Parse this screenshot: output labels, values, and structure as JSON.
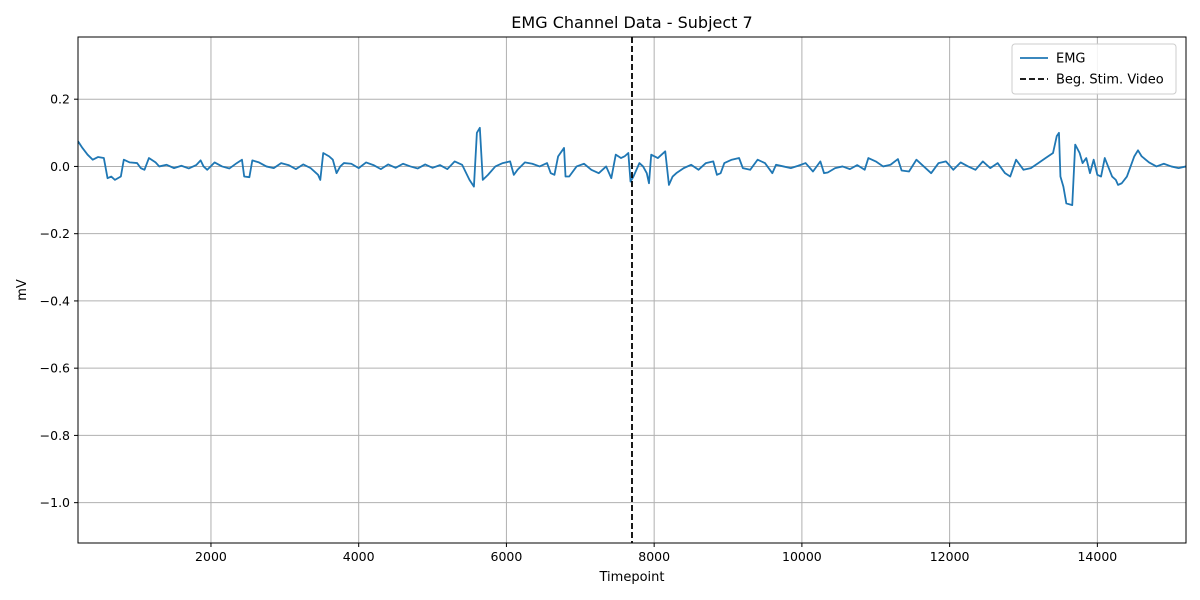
{
  "chart_data": {
    "type": "line",
    "title": "EMG Channel Data - Subject 7",
    "xlabel": "Timepoint",
    "ylabel": "mV",
    "xlim": [
      200,
      15200
    ],
    "ylim": [
      -1.12,
      0.385
    ],
    "xticks": [
      2000,
      4000,
      6000,
      8000,
      10000,
      12000,
      14000
    ],
    "xtick_labels": [
      "2000",
      "4000",
      "6000",
      "8000",
      "10000",
      "12000",
      "14000"
    ],
    "yticks": [
      0.2,
      0.0,
      -0.2,
      -0.4,
      -0.6,
      -0.8,
      -1.0
    ],
    "ytick_labels": [
      "0.2",
      "0.0",
      "−0.2",
      "−0.4",
      "−0.6",
      "−0.8",
      "−1.0"
    ],
    "grid": true,
    "legend_position": "top-right",
    "series": [
      {
        "name": "EMG",
        "color": "#1f77b4",
        "style": "solid",
        "points": [
          [
            200,
            0.075
          ],
          [
            260,
            0.055
          ],
          [
            330,
            0.035
          ],
          [
            400,
            0.02
          ],
          [
            470,
            0.028
          ],
          [
            550,
            0.025
          ],
          [
            600,
            -0.035
          ],
          [
            650,
            -0.03
          ],
          [
            700,
            -0.04
          ],
          [
            780,
            -0.03
          ],
          [
            820,
            0.02
          ],
          [
            900,
            0.012
          ],
          [
            1000,
            0.01
          ],
          [
            1050,
            -0.005
          ],
          [
            1100,
            -0.01
          ],
          [
            1160,
            0.025
          ],
          [
            1250,
            0.012
          ],
          [
            1300,
            0.0
          ],
          [
            1400,
            0.005
          ],
          [
            1500,
            -0.005
          ],
          [
            1600,
            0.002
          ],
          [
            1700,
            -0.006
          ],
          [
            1800,
            0.004
          ],
          [
            1860,
            0.018
          ],
          [
            1900,
            0.0
          ],
          [
            1950,
            -0.01
          ],
          [
            2050,
            0.012
          ],
          [
            2150,
            0.0
          ],
          [
            2250,
            -0.006
          ],
          [
            2350,
            0.01
          ],
          [
            2420,
            0.02
          ],
          [
            2450,
            -0.03
          ],
          [
            2520,
            -0.032
          ],
          [
            2560,
            0.018
          ],
          [
            2650,
            0.012
          ],
          [
            2750,
            0.0
          ],
          [
            2850,
            -0.005
          ],
          [
            2950,
            0.01
          ],
          [
            3050,
            0.004
          ],
          [
            3150,
            -0.008
          ],
          [
            3250,
            0.006
          ],
          [
            3350,
            -0.005
          ],
          [
            3450,
            -0.025
          ],
          [
            3480,
            -0.04
          ],
          [
            3520,
            0.04
          ],
          [
            3600,
            0.03
          ],
          [
            3650,
            0.02
          ],
          [
            3700,
            -0.02
          ],
          [
            3750,
            0.0
          ],
          [
            3800,
            0.01
          ],
          [
            3900,
            0.008
          ],
          [
            4000,
            -0.005
          ],
          [
            4100,
            0.012
          ],
          [
            4200,
            0.004
          ],
          [
            4300,
            -0.008
          ],
          [
            4400,
            0.006
          ],
          [
            4500,
            -0.004
          ],
          [
            4600,
            0.008
          ],
          [
            4700,
            0.0
          ],
          [
            4800,
            -0.006
          ],
          [
            4900,
            0.006
          ],
          [
            5000,
            -0.004
          ],
          [
            5100,
            0.004
          ],
          [
            5200,
            -0.008
          ],
          [
            5300,
            0.015
          ],
          [
            5400,
            0.005
          ],
          [
            5500,
            -0.04
          ],
          [
            5560,
            -0.06
          ],
          [
            5600,
            0.1
          ],
          [
            5640,
            0.115
          ],
          [
            5680,
            -0.04
          ],
          [
            5750,
            -0.025
          ],
          [
            5850,
            0.0
          ],
          [
            5950,
            0.01
          ],
          [
            6050,
            0.015
          ],
          [
            6100,
            -0.025
          ],
          [
            6150,
            -0.01
          ],
          [
            6250,
            0.012
          ],
          [
            6350,
            0.008
          ],
          [
            6450,
            0.0
          ],
          [
            6550,
            0.01
          ],
          [
            6600,
            -0.02
          ],
          [
            6650,
            -0.025
          ],
          [
            6700,
            0.03
          ],
          [
            6780,
            0.055
          ],
          [
            6800,
            -0.03
          ],
          [
            6850,
            -0.03
          ],
          [
            6950,
            0.0
          ],
          [
            7050,
            0.008
          ],
          [
            7150,
            -0.01
          ],
          [
            7250,
            -0.02
          ],
          [
            7350,
            0.0
          ],
          [
            7420,
            -0.035
          ],
          [
            7480,
            0.035
          ],
          [
            7550,
            0.025
          ],
          [
            7600,
            0.03
          ],
          [
            7650,
            0.04
          ],
          [
            7680,
            -0.045
          ],
          [
            7720,
            -0.03
          ],
          [
            7800,
            0.01
          ],
          [
            7850,
            0.0
          ],
          [
            7900,
            -0.02
          ],
          [
            7930,
            -0.05
          ],
          [
            7960,
            0.035
          ],
          [
            8050,
            0.025
          ],
          [
            8150,
            0.045
          ],
          [
            8200,
            -0.055
          ],
          [
            8250,
            -0.03
          ],
          [
            8300,
            -0.02
          ],
          [
            8400,
            -0.005
          ],
          [
            8500,
            0.005
          ],
          [
            8600,
            -0.01
          ],
          [
            8700,
            0.01
          ],
          [
            8800,
            0.015
          ],
          [
            8850,
            -0.025
          ],
          [
            8900,
            -0.02
          ],
          [
            8950,
            0.01
          ],
          [
            9050,
            0.02
          ],
          [
            9150,
            0.025
          ],
          [
            9200,
            -0.005
          ],
          [
            9300,
            -0.01
          ],
          [
            9400,
            0.02
          ],
          [
            9500,
            0.01
          ],
          [
            9600,
            -0.02
          ],
          [
            9650,
            0.005
          ],
          [
            9750,
            0.0
          ],
          [
            9850,
            -0.005
          ],
          [
            9950,
            0.002
          ],
          [
            10050,
            0.01
          ],
          [
            10150,
            -0.015
          ],
          [
            10250,
            0.015
          ],
          [
            10300,
            -0.02
          ],
          [
            10350,
            -0.018
          ],
          [
            10450,
            -0.005
          ],
          [
            10550,
            0.0
          ],
          [
            10650,
            -0.008
          ],
          [
            10750,
            0.004
          ],
          [
            10850,
            -0.01
          ],
          [
            10900,
            0.025
          ],
          [
            11000,
            0.015
          ],
          [
            11100,
            0.0
          ],
          [
            11200,
            0.005
          ],
          [
            11300,
            0.022
          ],
          [
            11350,
            -0.012
          ],
          [
            11450,
            -0.015
          ],
          [
            11550,
            0.02
          ],
          [
            11650,
            0.0
          ],
          [
            11750,
            -0.02
          ],
          [
            11850,
            0.01
          ],
          [
            11950,
            0.015
          ],
          [
            12050,
            -0.01
          ],
          [
            12150,
            0.012
          ],
          [
            12250,
            0.0
          ],
          [
            12350,
            -0.01
          ],
          [
            12450,
            0.015
          ],
          [
            12550,
            -0.005
          ],
          [
            12650,
            0.01
          ],
          [
            12750,
            -0.02
          ],
          [
            12820,
            -0.03
          ],
          [
            12900,
            0.02
          ],
          [
            13000,
            -0.01
          ],
          [
            13100,
            -0.005
          ],
          [
            13200,
            0.01
          ],
          [
            13300,
            0.025
          ],
          [
            13400,
            0.04
          ],
          [
            13450,
            0.09
          ],
          [
            13480,
            0.1
          ],
          [
            13500,
            -0.03
          ],
          [
            13540,
            -0.06
          ],
          [
            13580,
            -0.11
          ],
          [
            13660,
            -0.115
          ],
          [
            13700,
            0.065
          ],
          [
            13760,
            0.04
          ],
          [
            13800,
            0.01
          ],
          [
            13850,
            0.025
          ],
          [
            13900,
            -0.02
          ],
          [
            13950,
            0.02
          ],
          [
            14000,
            -0.025
          ],
          [
            14050,
            -0.03
          ],
          [
            14100,
            0.025
          ],
          [
            14200,
            -0.03
          ],
          [
            14250,
            -0.04
          ],
          [
            14280,
            -0.055
          ],
          [
            14330,
            -0.05
          ],
          [
            14400,
            -0.03
          ],
          [
            14450,
            0.0
          ],
          [
            14500,
            0.03
          ],
          [
            14550,
            0.048
          ],
          [
            14600,
            0.03
          ],
          [
            14700,
            0.012
          ],
          [
            14800,
            0.0
          ],
          [
            14900,
            0.008
          ],
          [
            15000,
            0.0
          ],
          [
            15100,
            -0.005
          ],
          [
            15200,
            0.0
          ]
        ]
      },
      {
        "name": "Beg. Stim. Video",
        "color": "#000000",
        "style": "dashed",
        "x": 7700
      }
    ]
  }
}
